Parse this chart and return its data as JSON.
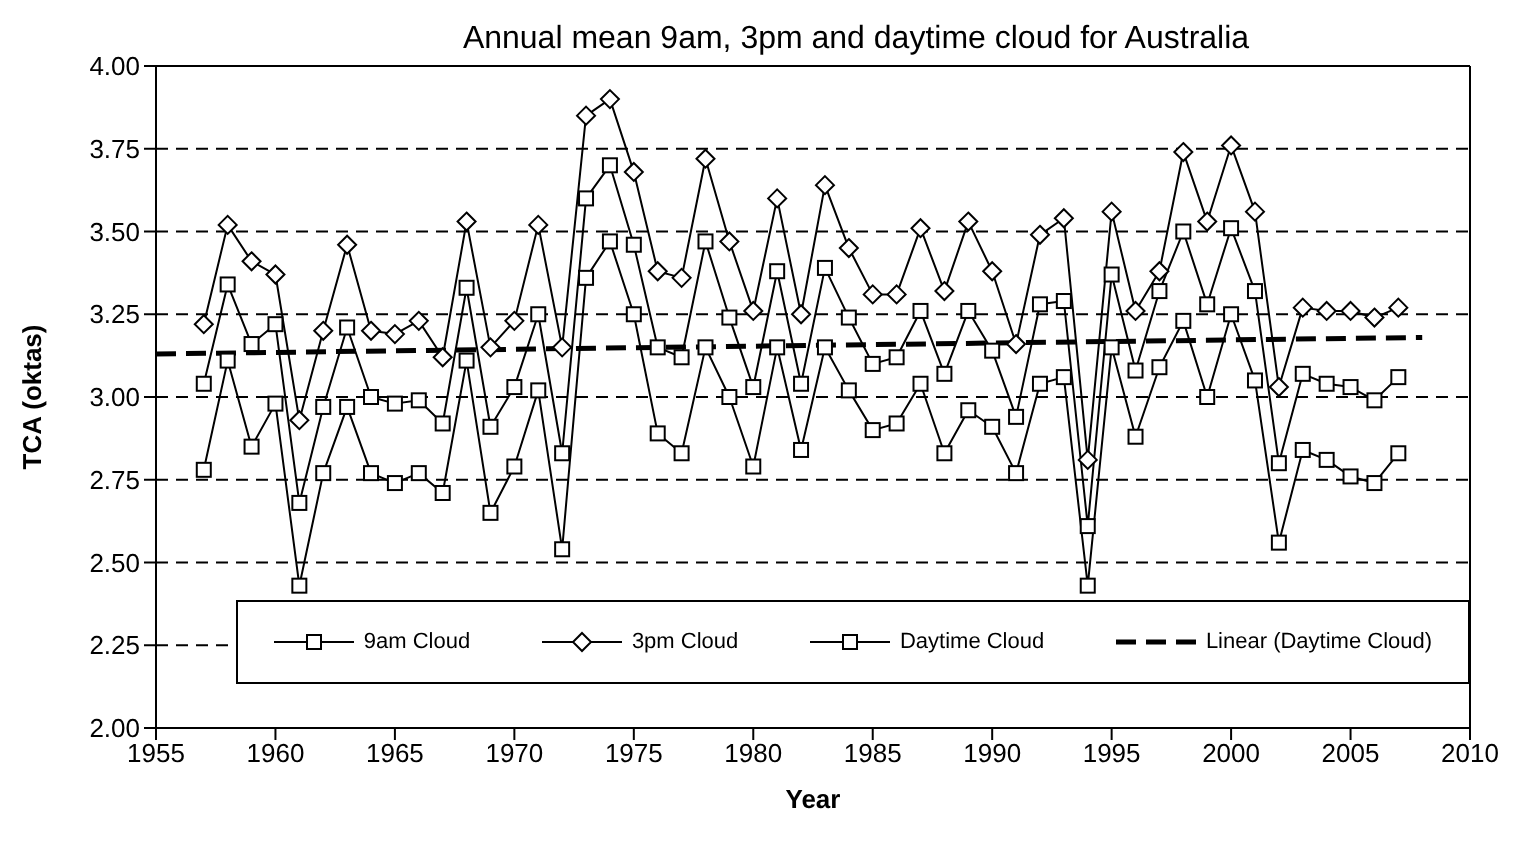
{
  "chart_data": {
    "type": "line",
    "title": "Annual mean 9am, 3pm and daytime cloud for Australia",
    "xlabel": "Year",
    "ylabel": "TCA (oktas)",
    "x": [
      1957,
      1958,
      1959,
      1960,
      1961,
      1962,
      1963,
      1964,
      1965,
      1966,
      1967,
      1968,
      1969,
      1970,
      1971,
      1972,
      1973,
      1974,
      1975,
      1976,
      1977,
      1978,
      1979,
      1980,
      1981,
      1982,
      1983,
      1984,
      1985,
      1986,
      1987,
      1988,
      1989,
      1990,
      1991,
      1992,
      1993,
      1994,
      1995,
      1996,
      1997,
      1998,
      1999,
      2000,
      2001,
      2002,
      2003,
      2004,
      2005,
      2006,
      2007
    ],
    "series": [
      {
        "name": "9am Cloud",
        "color": "#000000",
        "marker": "square",
        "values": [
          2.78,
          3.11,
          2.85,
          2.98,
          2.43,
          2.77,
          2.97,
          2.77,
          2.74,
          2.77,
          2.71,
          3.11,
          2.65,
          2.79,
          3.02,
          2.54,
          3.36,
          3.47,
          3.25,
          2.89,
          2.83,
          3.15,
          3.0,
          2.79,
          3.15,
          2.84,
          3.15,
          3.02,
          2.9,
          2.92,
          3.04,
          2.83,
          2.96,
          2.91,
          2.77,
          3.04,
          3.06,
          2.43,
          3.15,
          2.88,
          3.09,
          3.23,
          3.0,
          3.25,
          3.05,
          2.56,
          2.84,
          2.81,
          2.76,
          2.74,
          2.83
        ]
      },
      {
        "name": "3pm Cloud",
        "color": "#000000",
        "marker": "diamond",
        "values": [
          3.22,
          3.52,
          3.41,
          3.37,
          2.93,
          3.2,
          3.46,
          3.2,
          3.19,
          3.23,
          3.12,
          3.53,
          3.15,
          3.23,
          3.52,
          3.15,
          3.85,
          3.9,
          3.68,
          3.38,
          3.36,
          3.72,
          3.47,
          3.26,
          3.6,
          3.25,
          3.64,
          3.45,
          3.31,
          3.31,
          3.51,
          3.32,
          3.53,
          3.38,
          3.16,
          3.49,
          3.54,
          2.81,
          3.56,
          3.26,
          3.38,
          3.74,
          3.53,
          3.76,
          3.56,
          3.03,
          3.27,
          3.26,
          3.26,
          3.24,
          3.27
        ]
      },
      {
        "name": "Daytime Cloud",
        "color": "#000000",
        "marker": "square",
        "values": [
          3.04,
          3.34,
          3.16,
          3.22,
          2.68,
          2.97,
          3.21,
          3.0,
          2.98,
          2.99,
          2.92,
          3.33,
          2.91,
          3.03,
          3.25,
          2.83,
          3.6,
          3.7,
          3.46,
          3.15,
          3.12,
          3.47,
          3.24,
          3.03,
          3.38,
          3.04,
          3.39,
          3.24,
          3.1,
          3.12,
          3.26,
          3.07,
          3.26,
          3.14,
          2.94,
          3.28,
          3.29,
          2.61,
          3.37,
          3.08,
          3.32,
          3.5,
          3.28,
          3.51,
          3.32,
          2.8,
          3.07,
          3.04,
          3.03,
          2.99,
          3.06
        ]
      },
      {
        "name": "Linear (Daytime Cloud)",
        "color": "#000000",
        "marker": "none",
        "line_style": "dashed",
        "x": [
          1955,
          2008
        ],
        "values": [
          3.13,
          3.18
        ]
      }
    ],
    "xlim": [
      1955,
      2010
    ],
    "xticks": [
      1955,
      1960,
      1965,
      1970,
      1975,
      1980,
      1985,
      1990,
      1995,
      2000,
      2005,
      2010
    ],
    "ylim": [
      2,
      4
    ],
    "yticks": [
      {
        "value": 2,
        "label": "2.00"
      },
      {
        "value": 2.25,
        "label": "2.25"
      },
      {
        "value": 2.5,
        "label": "2.50"
      },
      {
        "value": 2.75,
        "label": "2.75"
      },
      {
        "value": 3,
        "label": "3.00"
      },
      {
        "value": 3.25,
        "label": "3.25"
      },
      {
        "value": 3.5,
        "label": "3.50"
      },
      {
        "value": 3.75,
        "label": "3.75"
      },
      {
        "value": 4,
        "label": "4.00"
      }
    ],
    "grid": "y",
    "legend": "bottom"
  }
}
